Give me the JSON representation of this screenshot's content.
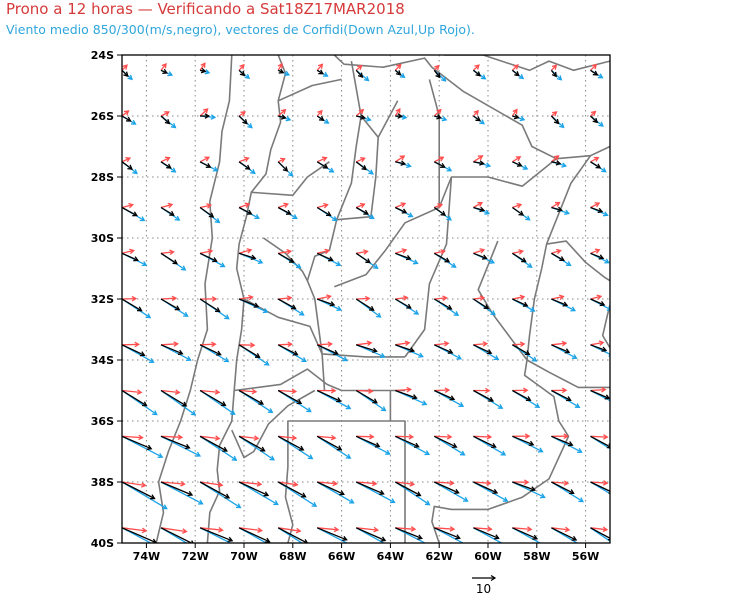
{
  "title": "Prono a 12 horas — Verificando a Sat18Z17MAR2018",
  "subtitle": "Viento medio 850/300(m/s,negro), vectores de Corfidi(Down Azul,Up Rojo).",
  "colors": {
    "mean_wind": "#000000",
    "corfidi_down": "#1aa3e8",
    "corfidi_up": "#ff4d4d",
    "borders": "#7a7a7a",
    "grid": "#888888",
    "title": "#d63a3a",
    "subtitle": "#2fa6dc"
  },
  "map": {
    "lon_range": [
      -75,
      -55
    ],
    "lat_range": [
      -40,
      -24
    ],
    "lat_labels": [
      "24S",
      "26S",
      "28S",
      "30S",
      "32S",
      "34S",
      "36S",
      "38S",
      "40S"
    ],
    "lon_labels": [
      "74W",
      "72W",
      "70W",
      "68W",
      "66W",
      "64W",
      "62W",
      "60W",
      "58W",
      "56W"
    ],
    "reference_vector_label": "10",
    "reference_vector_ms": 10
  }
}
